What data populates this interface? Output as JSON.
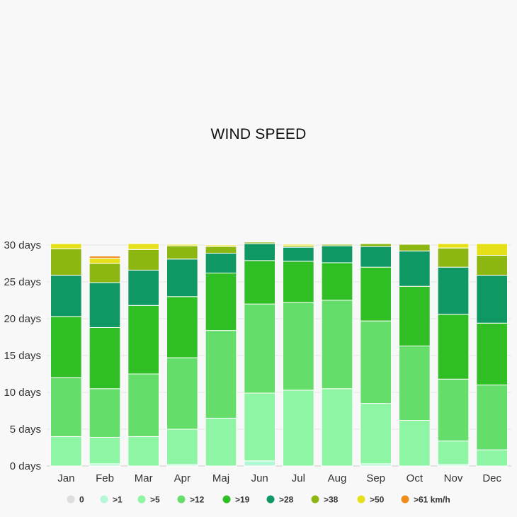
{
  "chart_data": {
    "type": "bar",
    "stacked": true,
    "title": "WIND SPEED",
    "xlabel": "",
    "ylabel": "",
    "ylim": [
      0,
      30
    ],
    "yticks": [
      0,
      5,
      10,
      15,
      20,
      25,
      30
    ],
    "ytick_labels": [
      "0 days",
      "5 days",
      "10 days",
      "15 days",
      "20 days",
      "25 days",
      "30 days"
    ],
    "grid": true,
    "legend_position": "bottom",
    "categories": [
      "Jan",
      "Feb",
      "Mar",
      "Apr",
      "Maj",
      "Jun",
      "Jul",
      "Aug",
      "Sep",
      "Oct",
      "Nov",
      "Dec"
    ],
    "series": [
      {
        "name": "0",
        "color": "#dddddd",
        "values": [
          0,
          0,
          0,
          0,
          0,
          0,
          0,
          0,
          0,
          0,
          0,
          0
        ]
      },
      {
        "name": ">1",
        "color": "#b4f7d6",
        "values": [
          0,
          0.3,
          0,
          0.2,
          0,
          0.7,
          0,
          0,
          0.3,
          0,
          0.2,
          0
        ]
      },
      {
        "name": ">5",
        "color": "#8ef5a5",
        "values": [
          4,
          3.6,
          4,
          4.8,
          6.5,
          9.2,
          10.3,
          10.5,
          8.2,
          6.2,
          3.2,
          2.2
        ]
      },
      {
        "name": ">12",
        "color": "#64dd6a",
        "values": [
          8,
          6.6,
          8.5,
          9.7,
          11.9,
          12.1,
          11.9,
          12,
          11.2,
          10.1,
          8.4,
          8.8
        ]
      },
      {
        "name": ">19",
        "color": "#2fbe23",
        "values": [
          8.3,
          8.3,
          9.3,
          8.3,
          7.8,
          5.9,
          5.6,
          5.1,
          7.3,
          8.1,
          8.8,
          8.4
        ]
      },
      {
        "name": ">28",
        "color": "#0f9863",
        "values": [
          5.6,
          6.1,
          4.8,
          5.1,
          2.7,
          2.3,
          1.9,
          2.3,
          2.8,
          4.8,
          6.4,
          6.5
        ]
      },
      {
        "name": ">38",
        "color": "#8cb611",
        "values": [
          3.6,
          2.6,
          2.8,
          1.8,
          0.9,
          0.2,
          0.2,
          0.2,
          0.4,
          0.9,
          2.6,
          2.7
        ]
      },
      {
        "name": ">50",
        "color": "#e6e01b",
        "values": [
          0.7,
          0.7,
          0.8,
          0.2,
          0.2,
          0,
          0.2,
          0,
          0.1,
          0.1,
          0.6,
          1.6
        ]
      },
      {
        "name": ">61 km/h",
        "color": "#ef8d1b",
        "values": [
          0,
          0.3,
          0,
          0,
          0,
          0,
          0,
          0,
          0,
          0,
          0,
          0
        ]
      }
    ]
  }
}
